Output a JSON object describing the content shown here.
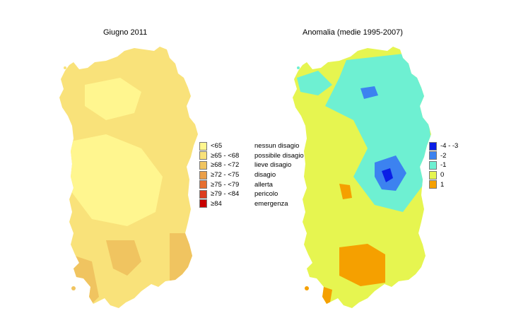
{
  "maps": [
    {
      "title": "Giugno 2011",
      "legend": [
        {
          "range": "<65",
          "label": "nessun disagio",
          "color": "#fff68f"
        },
        {
          "range": "≥65 - <68",
          "label": "possibile disagio",
          "color": "#f9e27a"
        },
        {
          "range": "≥68 - <72",
          "label": "lieve disagio",
          "color": "#f0c460"
        },
        {
          "range": "≥72 - <75",
          "label": "disagio",
          "color": "#eb9f48"
        },
        {
          "range": "≥75 - <79",
          "label": "allerta",
          "color": "#e66e30"
        },
        {
          "range": "≥79 - <84",
          "label": "pericolo",
          "color": "#dc3c1e"
        },
        {
          "range": "≥84",
          "label": "emergenza",
          "color": "#c80000"
        }
      ]
    },
    {
      "title": "Anomalia (medie 1995-2007)",
      "legend": [
        {
          "label": "-4 - -3",
          "color": "#0a1ee6"
        },
        {
          "label": "-2",
          "color": "#3c82f0"
        },
        {
          "label": "-1",
          "color": "#6ef0d2"
        },
        {
          "label": "0",
          "color": "#e6f550"
        },
        {
          "label": "1",
          "color": "#f5a000"
        }
      ]
    }
  ]
}
